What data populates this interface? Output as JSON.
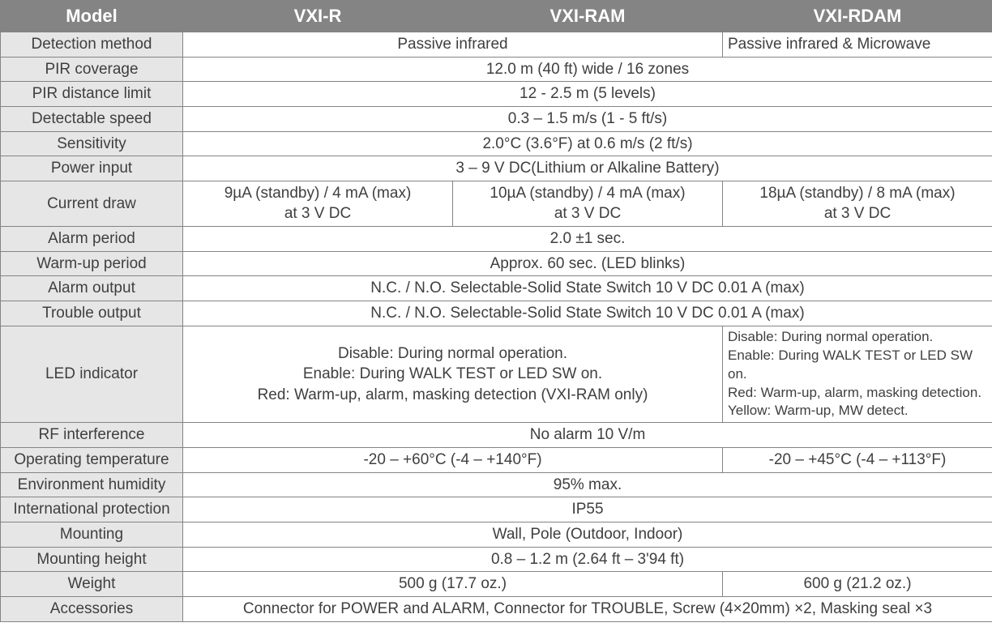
{
  "header": {
    "model": "Model",
    "c1": "VXI-R",
    "c2": "VXI-RAM",
    "c3": "VXI-RDAM"
  },
  "rows": {
    "detection_method": {
      "label": "Detection method",
      "span2": "Passive infrared",
      "c3": "Passive infrared & Microwave"
    },
    "pir_coverage": {
      "label": "PIR coverage",
      "all": "12.0 m (40 ft) wide / 16 zones"
    },
    "pir_distance_limit": {
      "label": "PIR distance limit",
      "all": "12 - 2.5 m (5 levels)"
    },
    "detectable_speed": {
      "label": "Detectable speed",
      "all": "0.3 – 1.5 m/s (1 - 5 ft/s)"
    },
    "sensitivity": {
      "label": "Sensitivity",
      "all": "2.0°C (3.6°F) at 0.6 m/s (2 ft/s)"
    },
    "power_input": {
      "label": "Power input",
      "all": "3 – 9 V DC(Lithium or Alkaline Battery)"
    },
    "current_draw": {
      "label": "Current draw",
      "c1": "9µA (standby) / 4 mA (max)\nat 3 V DC",
      "c2": "10µA (standby) / 4 mA (max)\nat 3 V DC",
      "c3": "18µA (standby) / 8 mA (max)\nat 3 V DC"
    },
    "alarm_period": {
      "label": "Alarm period",
      "all": "2.0 ±1 sec."
    },
    "warmup_period": {
      "label": "Warm-up period",
      "all": "Approx. 60 sec. (LED blinks)"
    },
    "alarm_output": {
      "label": "Alarm output",
      "all": "N.C. / N.O. Selectable-Solid State Switch 10 V DC 0.01 A (max)"
    },
    "trouble_output": {
      "label": "Trouble output",
      "all": "N.C. / N.O. Selectable-Solid State Switch 10 V DC 0.01 A (max)"
    },
    "led_indicator": {
      "label": "LED indicator",
      "span2": "Disable: During normal operation.\nEnable: During WALK TEST or LED SW on.\nRed: Warm-up, alarm, masking detection (VXI-RAM only)",
      "c3": "Disable: During normal operation.\nEnable: During WALK TEST or LED SW on.\nRed: Warm-up, alarm, masking detection.\nYellow: Warm-up, MW detect."
    },
    "rf_interference": {
      "label": "RF interference",
      "all": "No alarm 10 V/m"
    },
    "operating_temperature": {
      "label": "Operating temperature",
      "span2": "-20 – +60°C (-4 – +140°F)",
      "c3": "-20 – +45°C (-4 – +113°F)"
    },
    "environment_humidity": {
      "label": "Environment humidity",
      "all": "95% max."
    },
    "international_protection": {
      "label": "International protection",
      "all": "IP55"
    },
    "mounting": {
      "label": "Mounting",
      "all": "Wall, Pole (Outdoor, Indoor)"
    },
    "mounting_height": {
      "label": "Mounting height",
      "all": "0.8 – 1.2 m (2.64 ft – 3'94 ft)"
    },
    "weight": {
      "label": "Weight",
      "span2": "500 g (17.7 oz.)",
      "c3": "600 g (21.2 oz.)"
    },
    "accessories": {
      "label": "Accessories",
      "all": "Connector for POWER and ALARM, Connector for TROUBLE, Screw (4×20mm) ×2, Masking seal ×3"
    }
  }
}
